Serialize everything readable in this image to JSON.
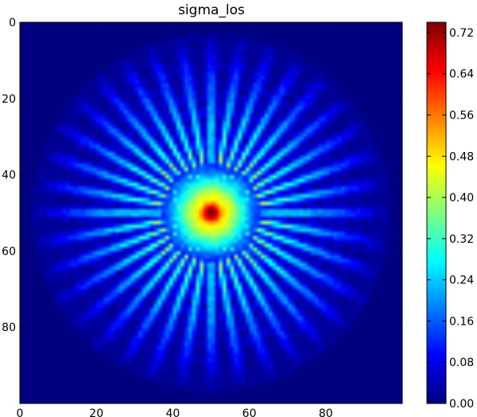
{
  "chart_data": {
    "type": "heatmap",
    "title": "sigma_los",
    "xlabel": "",
    "ylabel": "",
    "image_size": [
      100,
      100
    ],
    "xlim": [
      0,
      100
    ],
    "ylim": [
      100,
      0
    ],
    "x_ticks": [
      0,
      20,
      40,
      60,
      80
    ],
    "y_ticks": [
      0,
      20,
      40,
      60,
      80
    ],
    "colormap": "jet",
    "colorbar": {
      "vmin": 0.0,
      "vmax": 0.74,
      "ticks": [
        "0.00",
        "0.08",
        "0.16",
        "0.24",
        "0.32",
        "0.40",
        "0.48",
        "0.56",
        "0.64",
        "0.72"
      ]
    },
    "pattern": {
      "shape": "radial starburst",
      "center": [
        50,
        50
      ],
      "n_spokes": 36,
      "peak_value": 0.74,
      "background_value": 0.0
    }
  }
}
